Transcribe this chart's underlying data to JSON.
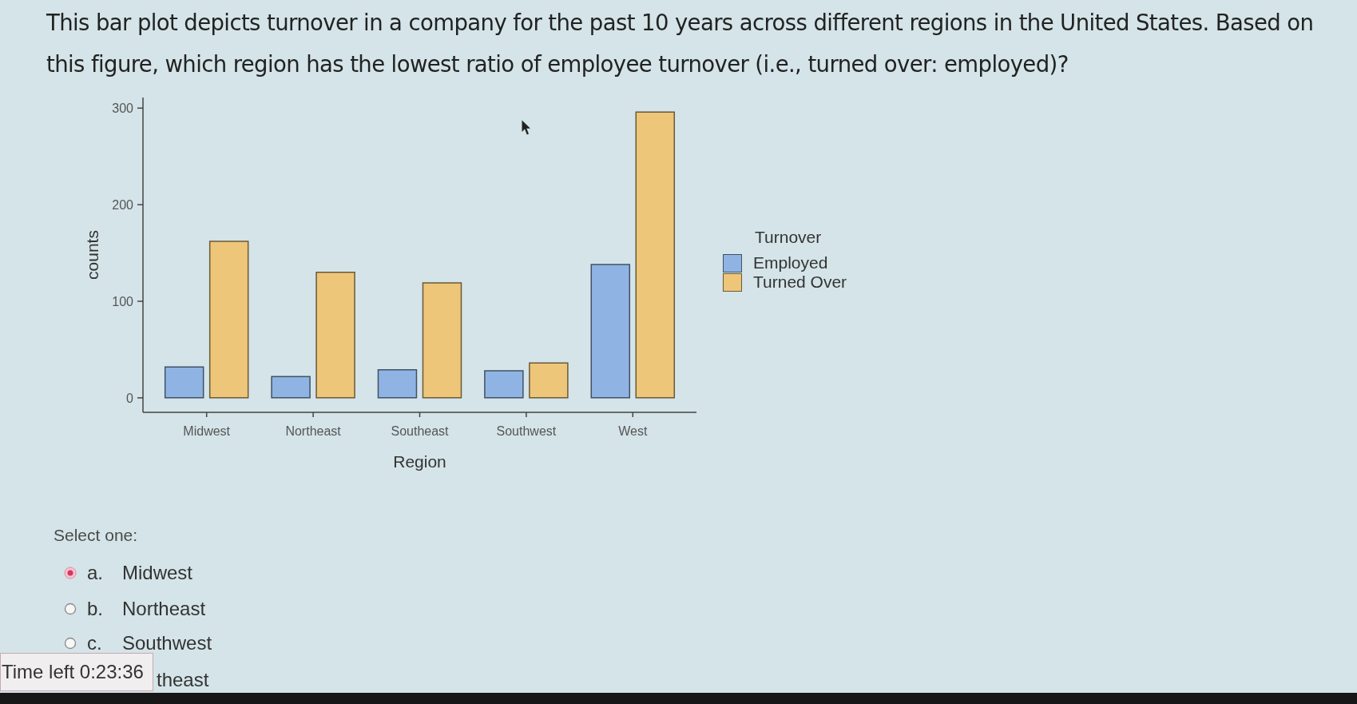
{
  "chart_data": {
    "type": "bar",
    "title": "This bar plot depicts turnover in a company for the past 10 years across different regions in the United States. Based on this figure, which region has the lowest ratio of employee turnover (i.e., turned over: employed)?",
    "xlabel": "Region",
    "ylabel": "counts",
    "legend_title": "Turnover",
    "legend": "right",
    "categories": [
      "Midwest",
      "Northeast",
      "Southeast",
      "Southwest",
      "West"
    ],
    "series": [
      {
        "name": "Employed",
        "color": "#8fb4e3",
        "values": [
          32,
          22,
          29,
          28,
          138
        ]
      },
      {
        "name": "Turned Over",
        "color": "#eec67a",
        "values": [
          162,
          130,
          119,
          36,
          296
        ]
      }
    ],
    "ylim": [
      -15,
      311
    ],
    "yticks": [
      0,
      100,
      200,
      300
    ],
    "annotations": [
      "Select one:",
      "a. Midwest",
      "b. Northeast",
      "c. Southwest",
      "Time left 0:23:36",
      "theast"
    ]
  }
}
